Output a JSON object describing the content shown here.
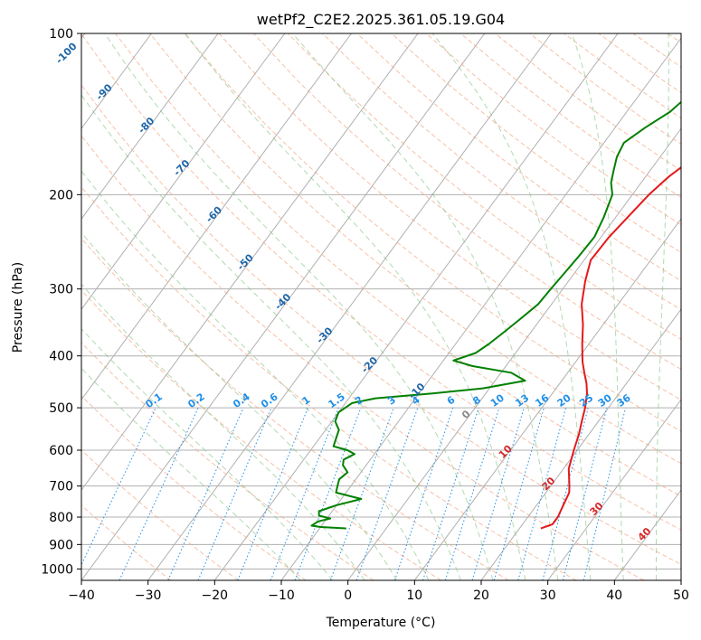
{
  "chart_data": {
    "type": "line",
    "title": "wetPf2_C2E2.2025.361.05.19.G04",
    "xlabel": "Temperature (°C)",
    "ylabel": "Pressure (hPa)",
    "xlim": [
      -40,
      50
    ],
    "ylim": [
      1050,
      100
    ],
    "y_scale": "log",
    "grid": true,
    "x_ticks": [
      -40,
      -30,
      -20,
      -10,
      0,
      10,
      20,
      30,
      40,
      50
    ],
    "y_ticks": [
      1000,
      900,
      800,
      700,
      600,
      500,
      400,
      300,
      200,
      100
    ],
    "series": [
      {
        "color": "#e31a1c",
        "points": [
          [
            23.2,
            840
          ],
          [
            24.5,
            825
          ],
          [
            24.5,
            800
          ],
          [
            24.0,
            760
          ],
          [
            23.5,
            720
          ],
          [
            22.8,
            700
          ],
          [
            20.8,
            650
          ],
          [
            19.5,
            600
          ],
          [
            18.5,
            560
          ],
          [
            17.5,
            530
          ],
          [
            16.5,
            500
          ],
          [
            15.2,
            470
          ],
          [
            14.0,
            450
          ],
          [
            12.5,
            430
          ],
          [
            11.0,
            410
          ],
          [
            9.0,
            380
          ],
          [
            7.0,
            350
          ],
          [
            4.5,
            320
          ],
          [
            2.5,
            290
          ],
          [
            1.0,
            265
          ],
          [
            1.2,
            240
          ],
          [
            1.8,
            220
          ],
          [
            2.5,
            200
          ],
          [
            3.5,
            185
          ],
          [
            5.0,
            172
          ],
          [
            5.8,
            160
          ],
          [
            5.8,
            150
          ],
          [
            5.8,
            140
          ],
          [
            6.5,
            130
          ],
          [
            7.5,
            120
          ],
          [
            7.8,
            110
          ],
          [
            8.5,
            100
          ]
        ]
      },
      {
        "color": "#008000",
        "points": [
          [
            -6.0,
            840
          ],
          [
            -10.0,
            835
          ],
          [
            -11.5,
            830
          ],
          [
            -11.0,
            815
          ],
          [
            -9.5,
            805
          ],
          [
            -11.5,
            795
          ],
          [
            -12.0,
            780
          ],
          [
            -10.0,
            760
          ],
          [
            -7.0,
            740
          ],
          [
            -11.5,
            720
          ],
          [
            -12.0,
            700
          ],
          [
            -12.5,
            680
          ],
          [
            -12.0,
            660
          ],
          [
            -13.5,
            640
          ],
          [
            -14.0,
            625
          ],
          [
            -13.0,
            610
          ],
          [
            -14.5,
            600
          ],
          [
            -17.0,
            590
          ],
          [
            -17.5,
            570
          ],
          [
            -18.0,
            550
          ],
          [
            -19.5,
            530
          ],
          [
            -20.0,
            510
          ],
          [
            -19.0,
            490
          ],
          [
            -16.0,
            480
          ],
          [
            -8.0,
            470
          ],
          [
            -1.0,
            460
          ],
          [
            4.5,
            445
          ],
          [
            1.5,
            430
          ],
          [
            -5.0,
            418
          ],
          [
            -8.5,
            408
          ],
          [
            -6.0,
            395
          ],
          [
            -5.0,
            380
          ],
          [
            -4.0,
            360
          ],
          [
            -3.0,
            340
          ],
          [
            -2.0,
            320
          ],
          [
            -1.8,
            300
          ],
          [
            -1.5,
            280
          ],
          [
            -1.2,
            260
          ],
          [
            -1.0,
            240
          ],
          [
            -1.8,
            220
          ],
          [
            -3.0,
            200
          ],
          [
            -4.5,
            190
          ],
          [
            -5.5,
            180
          ],
          [
            -6.5,
            170
          ],
          [
            -7.0,
            160
          ],
          [
            -5.5,
            150
          ],
          [
            -3.5,
            140
          ],
          [
            -2.5,
            130
          ],
          [
            -2.3,
            120
          ],
          [
            -1.5,
            110
          ],
          [
            0.5,
            100
          ]
        ]
      }
    ],
    "dry_adiabat_labels": [
      "-100",
      "-90",
      "-80",
      "-70",
      "-60",
      "-50",
      "-40",
      "-30",
      "-20",
      "-10",
      "0",
      "10",
      "20",
      "30",
      "40"
    ],
    "mixing_ratio_labels": [
      "0.1",
      "0.2",
      "0.4",
      "0.6",
      "1",
      "1.5",
      "2",
      "3",
      "4",
      "6",
      "8",
      "10",
      "13",
      "16",
      "20",
      "25",
      "30",
      "36"
    ],
    "mixing_ratios": [
      0.1,
      0.2,
      0.4,
      0.6,
      1,
      1.5,
      2,
      3,
      4,
      6,
      8,
      10,
      13,
      16,
      20,
      25,
      30,
      36
    ]
  }
}
